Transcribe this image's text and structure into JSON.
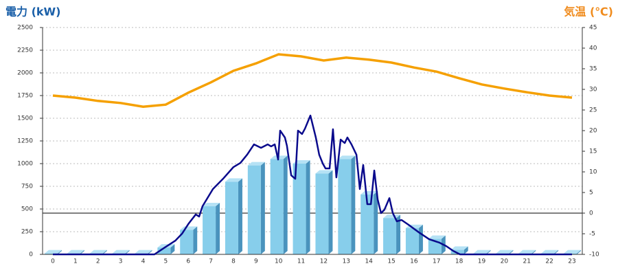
{
  "chart_data": {
    "type": "bar",
    "y_label": "電力 (kW)",
    "y2_label": "気温 (℃)",
    "y_label_color": "#1a5fa8",
    "y2_label_color": "#f08c1e",
    "categories": [
      "0",
      "1",
      "2",
      "3",
      "4",
      "5",
      "6",
      "7",
      "8",
      "9",
      "10",
      "11",
      "12",
      "13",
      "14",
      "15",
      "16",
      "17",
      "18",
      "19",
      "20",
      "21",
      "22",
      "23"
    ],
    "values": [
      10,
      10,
      10,
      10,
      10,
      75,
      270,
      530,
      800,
      980,
      1050,
      1000,
      890,
      1050,
      660,
      400,
      290,
      170,
      50,
      10,
      10,
      10,
      10,
      10
    ],
    "color": "#87ceeb",
    "side_color": "#4a93bd",
    "ylim": [
      0,
      2500
    ],
    "yticks": [
      0,
      250,
      500,
      750,
      1000,
      1250,
      1500,
      1750,
      2000,
      2250,
      2500
    ],
    "y2lim": [
      -10,
      45
    ],
    "y2ticks": [
      -10,
      -5,
      0,
      5,
      10,
      15,
      20,
      25,
      30,
      35,
      40,
      45
    ],
    "grid": true,
    "power_line": {
      "color": "#0a0a8c",
      "x": [
        0,
        4.5,
        4.96,
        5.42,
        5.72,
        6.02,
        6.33,
        6.48,
        6.63,
        7.09,
        7.54,
        8.0,
        8.31,
        8.61,
        8.91,
        9.22,
        9.52,
        9.67,
        9.83,
        9.98,
        10.07,
        10.28,
        10.37,
        10.56,
        10.74,
        10.86,
        11.04,
        11.17,
        11.41,
        11.65,
        11.8,
        11.96,
        12.08,
        12.26,
        12.41,
        12.56,
        12.75,
        12.93,
        13.05,
        13.23,
        13.45,
        13.6,
        13.75,
        13.93,
        14.09,
        14.24,
        14.39,
        14.54,
        14.69,
        14.91,
        15.06,
        15.24,
        15.45,
        15.76,
        16.22,
        16.67,
        17.13,
        17.43,
        17.74,
        18.04,
        23
      ],
      "values": [
        0,
        0,
        76,
        150,
        227,
        341,
        440,
        417,
        530,
        720,
        833,
        962,
        1008,
        1100,
        1212,
        1174,
        1212,
        1190,
        1212,
        1045,
        1364,
        1288,
        1197,
        871,
        833,
        1364,
        1326,
        1386,
        1530,
        1288,
        1098,
        1000,
        947,
        947,
        1379,
        848,
        1265,
        1227,
        1288,
        1212,
        1098,
        720,
        985,
        553,
        553,
        924,
        606,
        455,
        492,
        620,
        455,
        364,
        379,
        326,
        242,
        167,
        129,
        91,
        38,
        0,
        0
      ]
    },
    "temperature": {
      "color": "#f5a000",
      "axis": "y2",
      "values": [
        28.5,
        28,
        27.2,
        26.7,
        25.8,
        26.3,
        29.2,
        31.7,
        34.5,
        36.3,
        38.5,
        38,
        37,
        37.7,
        37.2,
        36.5,
        35.3,
        34.3,
        32.7,
        31.2,
        30.2,
        29.3,
        28.5,
        28
      ]
    }
  }
}
